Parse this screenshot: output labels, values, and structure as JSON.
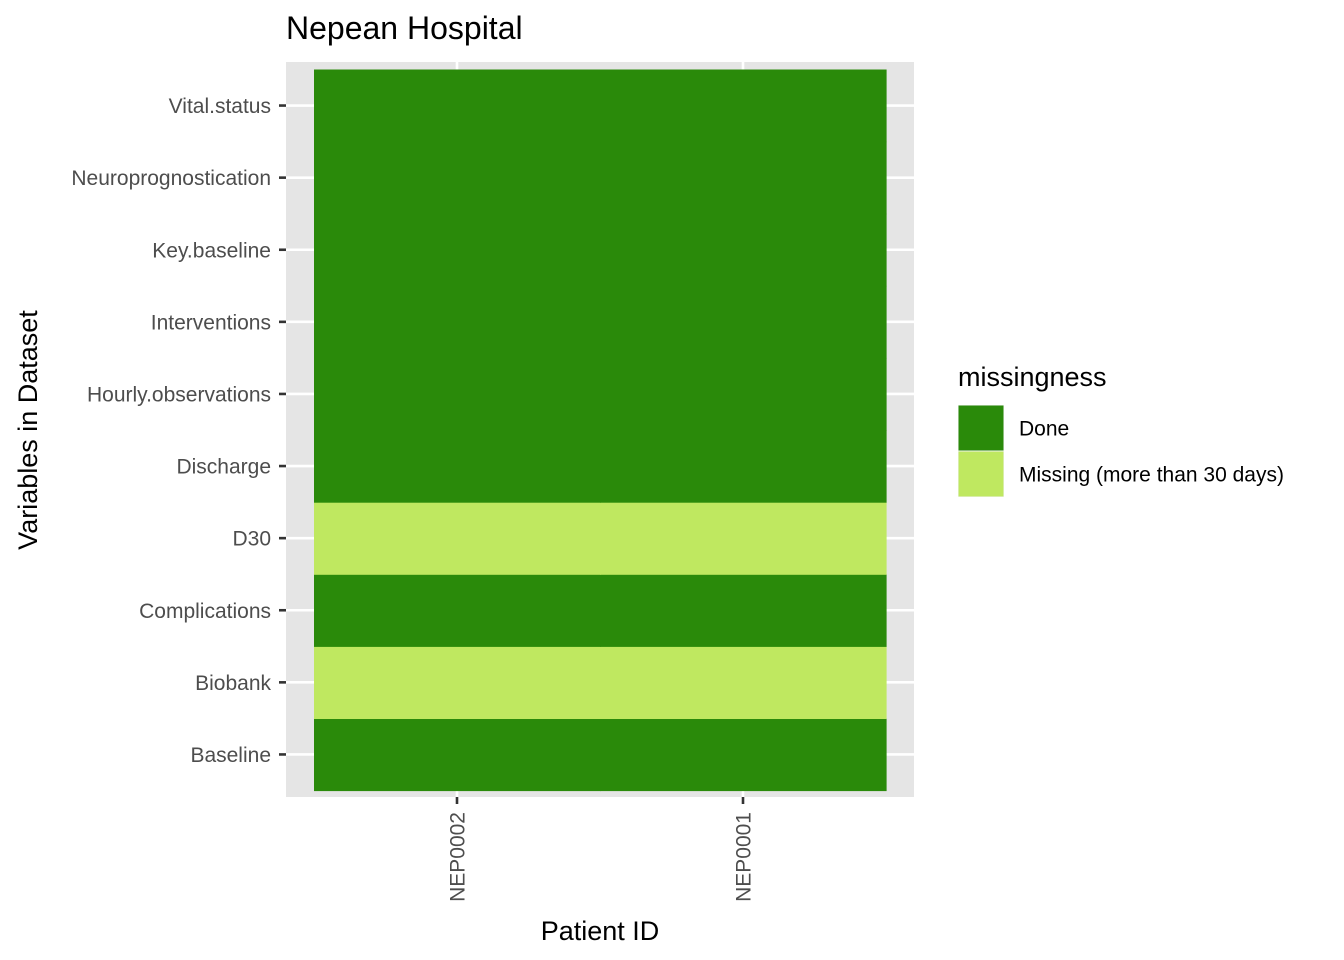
{
  "chart_data": {
    "type": "heatmap",
    "title": "Nepean Hospital",
    "xlabel": "Patient ID",
    "ylabel": "Variables in Dataset",
    "x_categories": [
      "NEP0002",
      "NEP0001"
    ],
    "y_categories": [
      "Baseline",
      "Biobank",
      "Complications",
      "D30",
      "Discharge",
      "Hourly.observations",
      "Interventions",
      "Key.baseline",
      "Neuroprognostication",
      "Vital.status"
    ],
    "cells": [
      {
        "x": "NEP0002",
        "y": "Baseline",
        "value": "Done"
      },
      {
        "x": "NEP0001",
        "y": "Baseline",
        "value": "Done"
      },
      {
        "x": "NEP0002",
        "y": "Biobank",
        "value": "Missing (more than 30 days)"
      },
      {
        "x": "NEP0001",
        "y": "Biobank",
        "value": "Missing (more than 30 days)"
      },
      {
        "x": "NEP0002",
        "y": "Complications",
        "value": "Done"
      },
      {
        "x": "NEP0001",
        "y": "Complications",
        "value": "Done"
      },
      {
        "x": "NEP0002",
        "y": "D30",
        "value": "Missing (more than 30 days)"
      },
      {
        "x": "NEP0001",
        "y": "D30",
        "value": "Missing (more than 30 days)"
      },
      {
        "x": "NEP0002",
        "y": "Discharge",
        "value": "Done"
      },
      {
        "x": "NEP0001",
        "y": "Discharge",
        "value": "Done"
      },
      {
        "x": "NEP0002",
        "y": "Hourly.observations",
        "value": "Done"
      },
      {
        "x": "NEP0001",
        "y": "Hourly.observations",
        "value": "Done"
      },
      {
        "x": "NEP0002",
        "y": "Interventions",
        "value": "Done"
      },
      {
        "x": "NEP0001",
        "y": "Interventions",
        "value": "Done"
      },
      {
        "x": "NEP0002",
        "y": "Key.baseline",
        "value": "Done"
      },
      {
        "x": "NEP0001",
        "y": "Key.baseline",
        "value": "Done"
      },
      {
        "x": "NEP0002",
        "y": "Neuroprognostication",
        "value": "Done"
      },
      {
        "x": "NEP0001",
        "y": "Neuroprognostication",
        "value": "Done"
      },
      {
        "x": "NEP0002",
        "y": "Vital.status",
        "value": "Done"
      },
      {
        "x": "NEP0001",
        "y": "Vital.status",
        "value": "Done"
      }
    ],
    "legend": {
      "title": "missingness",
      "position": "right",
      "entries": [
        {
          "label": "Done",
          "color": "#2a8a0a"
        },
        {
          "label": "Missing (more than 30 days)",
          "color": "#bfe860"
        }
      ]
    },
    "grid": true,
    "panel_background": "#e5e5e5",
    "grid_color": "#ffffff"
  }
}
